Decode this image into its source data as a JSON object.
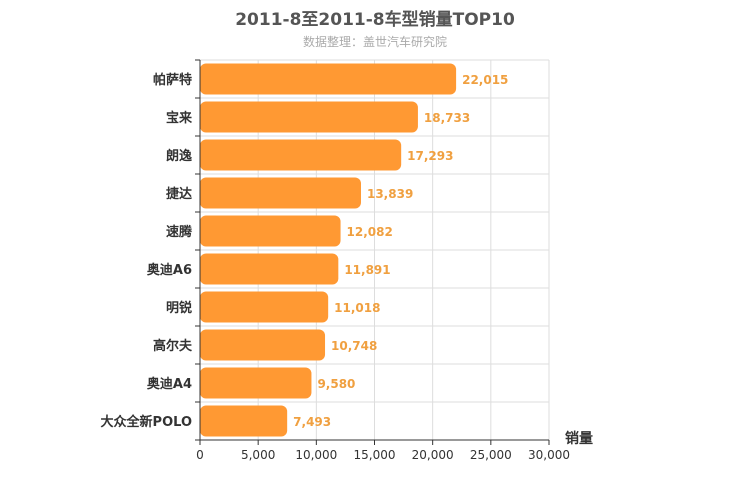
{
  "chart_data": {
    "type": "bar",
    "orientation": "horizontal",
    "title": "2011-8至2011-8车型销量TOP10",
    "subtitle": "数据整理：盖世汽车研究院",
    "xlabel": "销量",
    "ylabel": "",
    "categories": [
      "帕萨特",
      "宝来",
      "朗逸",
      "捷达",
      "速腾",
      "奥迪A6",
      "明锐",
      "高尔夫",
      "奥迪A4",
      "大众全新POLO"
    ],
    "series": [
      {
        "values": [
          22015,
          18733,
          17293,
          13839,
          12082,
          11891,
          11018,
          10748,
          9580,
          7493
        ],
        "labels": [
          "22,015",
          "18,733",
          "17,293",
          "13,839",
          "12,082",
          "11,891",
          "11,018",
          "10,748",
          "9,580",
          "7,493"
        ]
      }
    ],
    "xlim": [
      0,
      30000
    ],
    "ticks": [
      0,
      5000,
      10000,
      15000,
      20000,
      25000,
      30000
    ],
    "tick_labels": [
      "0",
      "5,000",
      "10,000",
      "15,000",
      "20,000",
      "25,000",
      "30,000"
    ],
    "grid": true,
    "legend": "none",
    "colors": {
      "bar": "#ff9933",
      "label": "#f0a040",
      "grid": "#dddddd",
      "axis": "#333333",
      "title": "#555555",
      "subtitle": "#aaaaaa"
    }
  }
}
